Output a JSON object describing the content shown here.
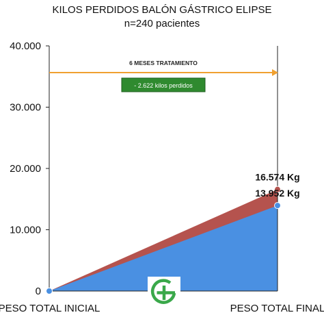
{
  "chart_data": {
    "type": "area",
    "title": "KILOS PERDIDOS BALÓN GÁSTRICO ELIPSE",
    "subtitle": "n=240 pacientes",
    "categories": [
      "PESO TOTAL INICIAL",
      "PESO TOTAL FINAL"
    ],
    "series": [
      {
        "values": [
          0,
          16574
        ],
        "color": "#b5534e"
      },
      {
        "values": [
          0,
          13952
        ],
        "color": "#4a90e2"
      }
    ],
    "data_labels": [
      "16.574 Kg",
      "13.952 Kg"
    ],
    "ylim": [
      0,
      40000
    ],
    "yticks": [
      0,
      10000,
      20000,
      30000,
      40000
    ],
    "ytick_labels": [
      "0",
      "10.000",
      "20.000",
      "30.000",
      "40.000"
    ],
    "grid": false,
    "annotations": {
      "arrow_text": "6 MESES TRATAMIENTO",
      "arrow_color": "#f0a030",
      "box_text": "- 2.622 kilos perdidos",
      "box_color": "#2f8a2f"
    },
    "logo_icon": "clinic-cross-logo-icon",
    "logo_color": "#3aa84a"
  }
}
